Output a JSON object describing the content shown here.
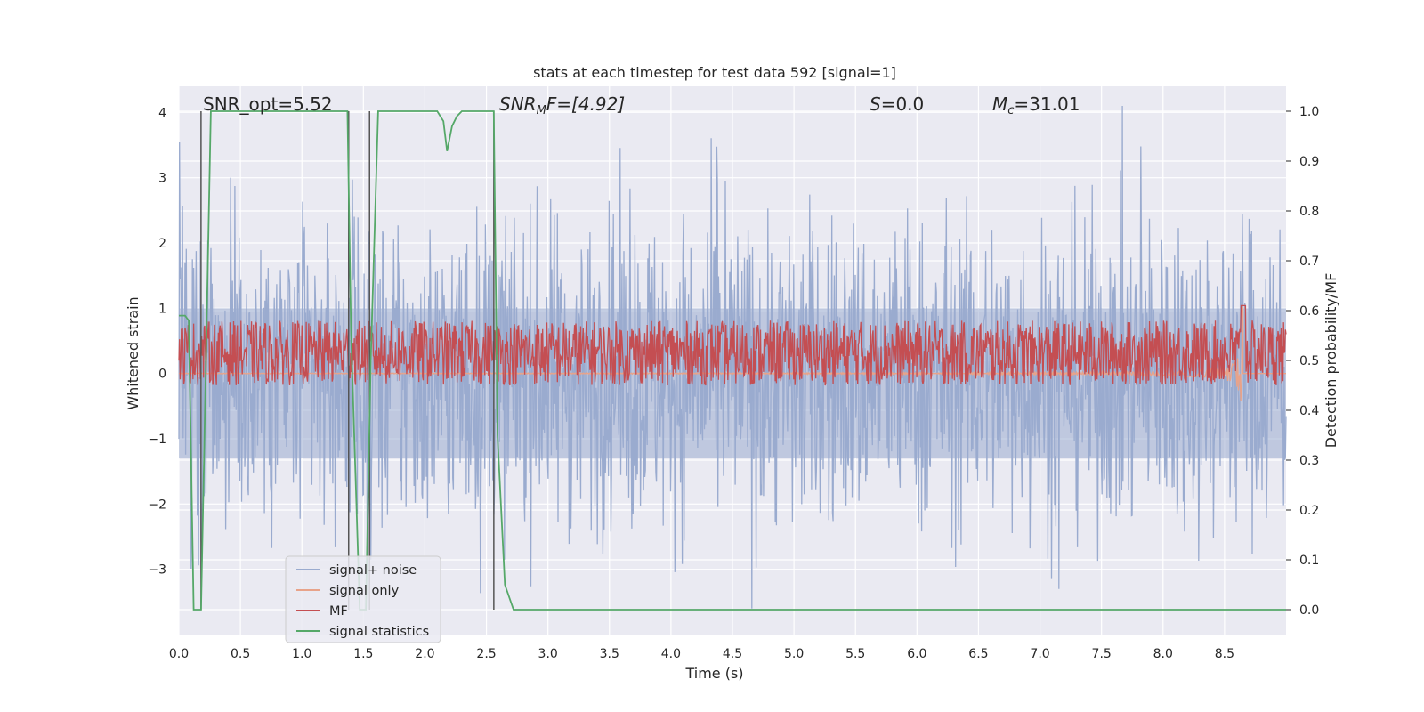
{
  "chart_data": {
    "type": "line",
    "title": "stats at each timestep for test data 592 [signal=1]",
    "xlabel": "Time (s)",
    "ylabel_left": "Whitened strain",
    "ylabel_right": "Detection probability/MF",
    "xlim": [
      0.0,
      9.0
    ],
    "ylim_left": [
      -4.0,
      4.4
    ],
    "ylim_right": [
      -0.05,
      1.05
    ],
    "x_ticks": [
      "0.0",
      "0.5",
      "1.0",
      "1.5",
      "2.0",
      "2.5",
      "3.0",
      "3.5",
      "4.0",
      "4.5",
      "5.0",
      "5.5",
      "6.0",
      "6.5",
      "7.0",
      "7.5",
      "8.0",
      "8.5"
    ],
    "y_left_ticks": [
      "4",
      "3",
      "2",
      "1",
      "0",
      "−1",
      "−2",
      "−3"
    ],
    "y_right_ticks": [
      "1.0",
      "0.9",
      "0.8",
      "0.7",
      "0.6",
      "0.5",
      "0.4",
      "0.3",
      "0.2",
      "0.1",
      "0.0"
    ],
    "grid": true,
    "legend_position": "lower-left",
    "annotations": {
      "snr_opt": "SNR_opt=5.52",
      "snr_mf": "SNR",
      "snr_mf_sub": "M",
      "snr_mf_rest": "F=[4.92]",
      "s_stat": "S",
      "s_value": "=0.0",
      "mc": "M",
      "mc_sub": "c",
      "mc_value": "=31.01"
    },
    "vertical_markers_x": [
      0.18,
      1.38,
      1.55,
      2.56
    ],
    "series": [
      {
        "name": "signal+ noise",
        "color": "#9aabcf",
        "axis": "left",
        "description_range": [
          -3.6,
          4.1
        ]
      },
      {
        "name": "signal only",
        "color": "#e8a38a",
        "axis": "left",
        "chirp_end_x": 8.65,
        "chirp_peak_amplitude": 1.4
      },
      {
        "name": "MF",
        "color": "#c44e52",
        "axis": "right",
        "baseline": 0.5,
        "noise_range": [
          0.45,
          0.58
        ],
        "peak": {
          "x": 8.65,
          "y": 0.61
        }
      },
      {
        "name": "signal statistics",
        "color": "#55a868",
        "axis": "right",
        "x": [
          0.0,
          0.05,
          0.08,
          0.12,
          0.18,
          0.22,
          0.26,
          0.3,
          0.5,
          1.0,
          1.3,
          1.37,
          1.4,
          1.47,
          1.52,
          1.56,
          1.62,
          1.7,
          2.0,
          2.1,
          2.15,
          2.18,
          2.22,
          2.26,
          2.3,
          2.5,
          2.56,
          2.59,
          2.65,
          2.72,
          2.8,
          9.0
        ],
        "y": [
          0.59,
          0.59,
          0.58,
          0.0,
          0.0,
          0.5,
          1.0,
          1.0,
          1.0,
          1.0,
          1.0,
          1.0,
          0.55,
          0.0,
          0.0,
          0.5,
          1.0,
          1.0,
          1.0,
          1.0,
          0.98,
          0.92,
          0.97,
          0.99,
          1.0,
          1.0,
          1.0,
          0.35,
          0.05,
          0.0,
          0.0,
          0.0
        ]
      }
    ]
  }
}
